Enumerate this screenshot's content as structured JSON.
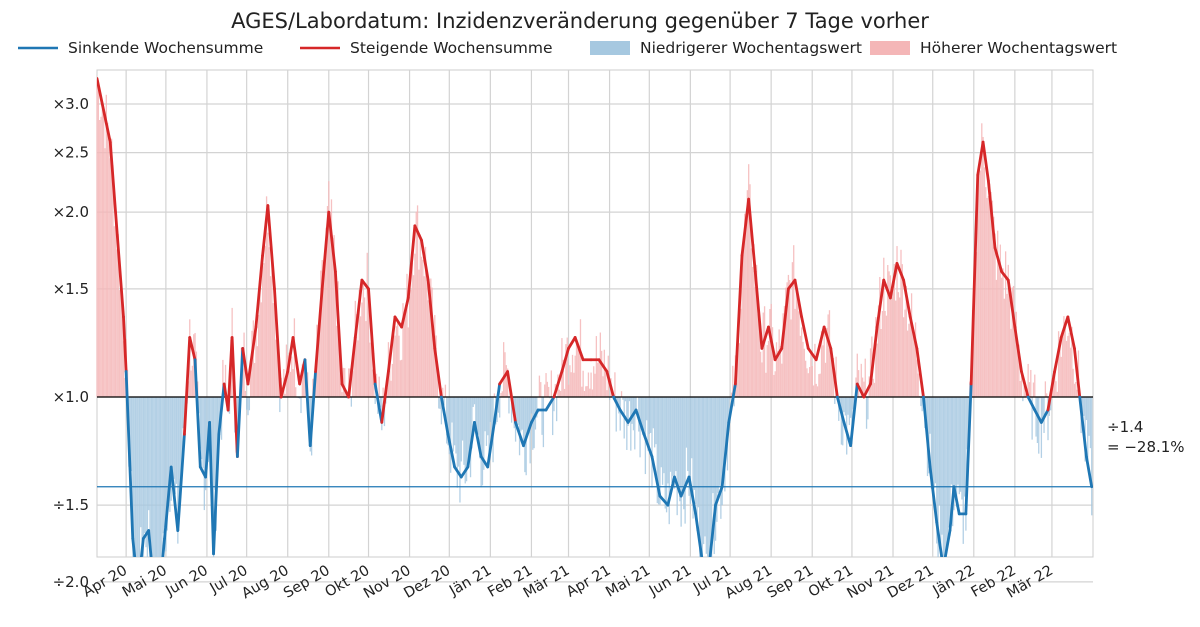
{
  "chart_data": {
    "type": "line",
    "title": "AGES/Labordatum: Inzidenzveränderung gegenüber 7 Tage vorher",
    "legend": [
      {
        "label": "Sinkende Wochensumme",
        "kind": "line",
        "color": "#1f77b4"
      },
      {
        "label": "Steigende Wochensumme",
        "kind": "line",
        "color": "#d62728"
      },
      {
        "label": "Niedrigerer Wochentagswert",
        "kind": "bar",
        "color": "#a6c8e0"
      },
      {
        "label": "Höherer Wochentagswert",
        "kind": "bar",
        "color": "#f4b6b7"
      }
    ],
    "legend_position": "top",
    "y_scale": "symmetric-ratio",
    "y_range": [
      -2.1,
      3.25
    ],
    "y_ticks": [
      {
        "value": 3.0,
        "label": "×3.0"
      },
      {
        "value": 2.5,
        "label": "×2.5"
      },
      {
        "value": 2.0,
        "label": "×2.0"
      },
      {
        "value": 1.5,
        "label": "×1.5"
      },
      {
        "value": 1.0,
        "label": "×1.0"
      },
      {
        "value": -1.5,
        "label": "÷1.5"
      },
      {
        "value": -2.0,
        "label": "÷2.0"
      }
    ],
    "x_ticks": [
      "Apr 20",
      "Mai 20",
      "Jun 20",
      "Jul 20",
      "Aug 20",
      "Sep 20",
      "Okt 20",
      "Nov 20",
      "Dez 20",
      "Jän 21",
      "Feb 21",
      "Mär 21",
      "Apr 21",
      "Mai 21",
      "Jun 21",
      "Jul 21",
      "Aug 21",
      "Sep 21",
      "Okt 21",
      "Nov 21",
      "Dez 21",
      "Jän 22",
      "Feb 22",
      "Mär 22"
    ],
    "x_range": [
      "2020-03-10",
      "2022-04-01"
    ],
    "grid": true,
    "reference_line": {
      "value": 1.0,
      "color": "#000000"
    },
    "current_line": {
      "value": -1.4,
      "color": "#1f77b4",
      "annotation": [
        "÷1.4",
        "= −28.1%"
      ]
    },
    "series": [
      {
        "name": "Wochensumme",
        "rising_color": "#d62728",
        "falling_color": "#1f77b4",
        "points": [
          [
            "2020-03-10",
            3.3
          ],
          [
            "2020-03-20",
            2.6
          ],
          [
            "2020-03-30",
            1.35
          ],
          [
            "2020-04-01",
            1.1
          ],
          [
            "2020-04-06",
            -1.7
          ],
          [
            "2020-04-10",
            -2.05
          ],
          [
            "2020-04-14",
            -1.7
          ],
          [
            "2020-04-18",
            -1.65
          ],
          [
            "2020-04-22",
            -2.05
          ],
          [
            "2020-04-26",
            -2.1
          ],
          [
            "2020-04-30",
            -1.7
          ],
          [
            "2020-05-05",
            -1.3
          ],
          [
            "2020-05-10",
            -1.65
          ],
          [
            "2020-05-15",
            -1.15
          ],
          [
            "2020-05-19",
            1.25
          ],
          [
            "2020-05-23",
            1.15
          ],
          [
            "2020-05-27",
            -1.3
          ],
          [
            "2020-05-31",
            -1.35
          ],
          [
            "2020-06-03",
            -1.1
          ],
          [
            "2020-06-06",
            -1.8
          ],
          [
            "2020-06-10",
            -1.15
          ],
          [
            "2020-06-14",
            1.05
          ],
          [
            "2020-06-17",
            -1.05
          ],
          [
            "2020-06-20",
            1.25
          ],
          [
            "2020-06-24",
            -1.25
          ],
          [
            "2020-06-28",
            1.2
          ],
          [
            "2020-07-02",
            1.05
          ],
          [
            "2020-07-08",
            1.3
          ],
          [
            "2020-07-13",
            1.7
          ],
          [
            "2020-07-17",
            2.05
          ],
          [
            "2020-07-22",
            1.5
          ],
          [
            "2020-07-27",
            1.0
          ],
          [
            "2020-08-01",
            1.1
          ],
          [
            "2020-08-05",
            1.25
          ],
          [
            "2020-08-10",
            1.05
          ],
          [
            "2020-08-14",
            1.15
          ],
          [
            "2020-08-18",
            -1.2
          ],
          [
            "2020-08-22",
            1.1
          ],
          [
            "2020-08-27",
            1.5
          ],
          [
            "2020-09-01",
            2.0
          ],
          [
            "2020-09-06",
            1.6
          ],
          [
            "2020-09-11",
            1.05
          ],
          [
            "2020-09-16",
            1.0
          ],
          [
            "2020-09-21",
            1.25
          ],
          [
            "2020-09-26",
            1.55
          ],
          [
            "2020-10-01",
            1.5
          ],
          [
            "2020-10-06",
            1.05
          ],
          [
            "2020-10-11",
            -1.1
          ],
          [
            "2020-10-16",
            1.1
          ],
          [
            "2020-10-21",
            1.35
          ],
          [
            "2020-10-26",
            1.3
          ],
          [
            "2020-10-31",
            1.45
          ],
          [
            "2020-11-05",
            1.9
          ],
          [
            "2020-11-10",
            1.8
          ],
          [
            "2020-11-15",
            1.55
          ],
          [
            "2020-11-20",
            1.2
          ],
          [
            "2020-11-25",
            1.0
          ],
          [
            "2020-11-30",
            -1.15
          ],
          [
            "2020-12-05",
            -1.3
          ],
          [
            "2020-12-10",
            -1.35
          ],
          [
            "2020-12-15",
            -1.3
          ],
          [
            "2020-12-20",
            -1.1
          ],
          [
            "2020-12-25",
            -1.25
          ],
          [
            "2020-12-30",
            -1.3
          ],
          [
            "2021-01-04",
            -1.1
          ],
          [
            "2021-01-08",
            1.05
          ],
          [
            "2021-01-14",
            1.1
          ],
          [
            "2021-01-20",
            -1.1
          ],
          [
            "2021-01-26",
            -1.2
          ],
          [
            "2021-02-01",
            -1.1
          ],
          [
            "2021-02-06",
            -1.05
          ],
          [
            "2021-02-12",
            -1.05
          ],
          [
            "2021-02-18",
            1.0
          ],
          [
            "2021-02-24",
            1.1
          ],
          [
            "2021-03-01",
            1.2
          ],
          [
            "2021-03-06",
            1.25
          ],
          [
            "2021-03-12",
            1.15
          ],
          [
            "2021-03-18",
            1.15
          ],
          [
            "2021-03-24",
            1.15
          ],
          [
            "2021-03-30",
            1.1
          ],
          [
            "2021-04-04",
            1.0
          ],
          [
            "2021-04-09",
            -1.05
          ],
          [
            "2021-04-15",
            -1.1
          ],
          [
            "2021-04-21",
            -1.05
          ],
          [
            "2021-04-27",
            -1.15
          ],
          [
            "2021-05-03",
            -1.25
          ],
          [
            "2021-05-09",
            -1.45
          ],
          [
            "2021-05-15",
            -1.5
          ],
          [
            "2021-05-20",
            -1.35
          ],
          [
            "2021-05-25",
            -1.45
          ],
          [
            "2021-05-31",
            -1.35
          ],
          [
            "2021-06-05",
            -1.55
          ],
          [
            "2021-06-10",
            -1.85
          ],
          [
            "2021-06-15",
            -1.9
          ],
          [
            "2021-06-20",
            -1.5
          ],
          [
            "2021-06-25",
            -1.4
          ],
          [
            "2021-06-30",
            -1.1
          ],
          [
            "2021-07-05",
            1.05
          ],
          [
            "2021-07-10",
            1.7
          ],
          [
            "2021-07-15",
            2.1
          ],
          [
            "2021-07-20",
            1.6
          ],
          [
            "2021-07-25",
            1.2
          ],
          [
            "2021-07-30",
            1.3
          ],
          [
            "2021-08-04",
            1.15
          ],
          [
            "2021-08-09",
            1.2
          ],
          [
            "2021-08-14",
            1.5
          ],
          [
            "2021-08-19",
            1.55
          ],
          [
            "2021-08-24",
            1.35
          ],
          [
            "2021-08-29",
            1.2
          ],
          [
            "2021-09-04",
            1.15
          ],
          [
            "2021-09-10",
            1.3
          ],
          [
            "2021-09-15",
            1.2
          ],
          [
            "2021-09-20",
            1.0
          ],
          [
            "2021-09-25",
            -1.1
          ],
          [
            "2021-09-30",
            -1.2
          ],
          [
            "2021-10-05",
            1.05
          ],
          [
            "2021-10-10",
            1.0
          ],
          [
            "2021-10-15",
            1.05
          ],
          [
            "2021-10-20",
            1.3
          ],
          [
            "2021-10-25",
            1.55
          ],
          [
            "2021-10-30",
            1.45
          ],
          [
            "2021-11-04",
            1.65
          ],
          [
            "2021-11-09",
            1.55
          ],
          [
            "2021-11-14",
            1.35
          ],
          [
            "2021-11-19",
            1.2
          ],
          [
            "2021-11-24",
            1.0
          ],
          [
            "2021-11-29",
            -1.3
          ],
          [
            "2021-12-04",
            -1.6
          ],
          [
            "2021-12-09",
            -1.9
          ],
          [
            "2021-12-14",
            -1.65
          ],
          [
            "2021-12-17",
            -1.4
          ],
          [
            "2021-12-21",
            -1.55
          ],
          [
            "2021-12-26",
            -1.55
          ],
          [
            "2021-12-30",
            1.05
          ],
          [
            "2022-01-04",
            2.3
          ],
          [
            "2022-01-08",
            2.6
          ],
          [
            "2022-01-12",
            2.25
          ],
          [
            "2022-01-17",
            1.75
          ],
          [
            "2022-01-22",
            1.6
          ],
          [
            "2022-01-27",
            1.55
          ],
          [
            "2022-02-01",
            1.3
          ],
          [
            "2022-02-06",
            1.1
          ],
          [
            "2022-02-11",
            1.0
          ],
          [
            "2022-02-16",
            -1.05
          ],
          [
            "2022-02-21",
            -1.1
          ],
          [
            "2022-02-26",
            -1.05
          ],
          [
            "2022-03-03",
            1.1
          ],
          [
            "2022-03-08",
            1.25
          ],
          [
            "2022-03-13",
            1.35
          ],
          [
            "2022-03-18",
            1.2
          ],
          [
            "2022-03-22",
            1.0
          ],
          [
            "2022-03-27",
            -1.25
          ],
          [
            "2022-03-31",
            -1.4
          ]
        ]
      }
    ]
  }
}
